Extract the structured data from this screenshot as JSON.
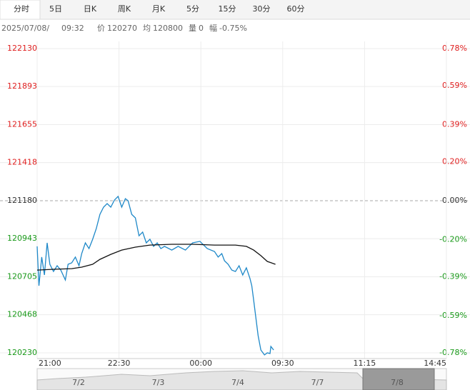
{
  "tabs": [
    "分时",
    "5日",
    "日K",
    "周K",
    "月K",
    "5分",
    "15分",
    "30分",
    "60分"
  ],
  "active_tab": 0,
  "info": {
    "date": "2025/07/08/",
    "time": "09:32",
    "fields": [
      {
        "label": "价",
        "value": "120270"
      },
      {
        "label": "均",
        "value": "120800"
      },
      {
        "label": "量",
        "value": "0"
      },
      {
        "label": "幅",
        "value": "-0.75%"
      }
    ]
  },
  "chart_data": {
    "type": "line",
    "xlim": [
      0,
      450
    ],
    "xticks": [
      {
        "value": 0,
        "label": "21:00"
      },
      {
        "value": 90,
        "label": "22:30"
      },
      {
        "value": 180,
        "label": "00:00"
      },
      {
        "value": 270,
        "label": "09:30"
      },
      {
        "value": 360,
        "label": "11:15"
      },
      {
        "value": 450,
        "label": "14:45"
      }
    ],
    "ylim": [
      120230,
      122130
    ],
    "yticks": [
      122130,
      121893,
      121655,
      121418,
      121180,
      120943,
      120705,
      120468,
      120230
    ],
    "y2lim": [
      -0.78,
      0.78
    ],
    "y2ticks": [
      {
        "value": 0.78,
        "label": "0.78%"
      },
      {
        "value": 0.59,
        "label": "0.59%"
      },
      {
        "value": 0.39,
        "label": "0.39%"
      },
      {
        "value": 0.2,
        "label": "0.20%"
      },
      {
        "value": 0,
        "label": "0.00%"
      },
      {
        "value": -0.2,
        "label": "-0.20%"
      },
      {
        "value": -0.39,
        "label": "-0.39%"
      },
      {
        "value": -0.59,
        "label": "-0.59%"
      },
      {
        "value": -0.78,
        "label": "-0.78%"
      }
    ],
    "reference": 121180,
    "up_color": "#e02020",
    "down_color": "#1a9a1a",
    "flat_color": "#333333",
    "grid": true,
    "series": [
      {
        "color": "#1e88c8",
        "x": [
          0,
          2,
          5,
          8,
          11,
          14,
          18,
          22,
          26,
          31,
          34,
          38,
          42,
          46,
          49,
          53,
          57,
          61,
          65,
          69,
          73,
          77,
          81,
          85,
          89,
          93,
          97,
          100,
          104,
          108,
          112,
          116,
          120,
          124,
          128,
          132,
          136,
          140,
          148,
          155,
          163,
          171,
          179,
          187,
          195,
          199,
          203,
          206,
          210,
          214,
          218,
          222,
          226,
          230,
          234,
          236,
          238,
          240,
          243,
          246,
          250,
          253,
          256,
          257,
          260
        ],
        "values": [
          120895,
          120649,
          120828,
          120716,
          120917,
          120783,
          120738,
          120774,
          120747,
          120685,
          120783,
          120792,
          120828,
          120774,
          120850,
          120917,
          120881,
          120939,
          121006,
          121095,
          121140,
          121162,
          121140,
          121184,
          121207,
          121140,
          121193,
          121180,
          121095,
          121073,
          120961,
          120984,
          120917,
          120939,
          120895,
          120917,
          120881,
          120895,
          120872,
          120895,
          120872,
          120917,
          120926,
          120881,
          120863,
          120828,
          120850,
          120805,
          120783,
          120747,
          120738,
          120774,
          120716,
          120761,
          120694,
          120649,
          120560,
          120471,
          120337,
          120248,
          120217,
          120230,
          120226,
          120270,
          120248
        ]
      },
      {
        "color": "#111111",
        "x": [
          0,
          18,
          38,
          49,
          61,
          69,
          81,
          93,
          108,
          124,
          148,
          171,
          195,
          218,
          230,
          238,
          246,
          253,
          262
        ],
        "values": [
          120747,
          120752,
          120756,
          120765,
          120783,
          120814,
          120845,
          120872,
          120890,
          120903,
          120908,
          120908,
          120903,
          120903,
          120895,
          120872,
          120837,
          120801,
          120783
        ]
      }
    ]
  },
  "navigator": {
    "labels": [
      "7/2",
      "7/3",
      "7/4",
      "7/7",
      "7/8"
    ]
  }
}
